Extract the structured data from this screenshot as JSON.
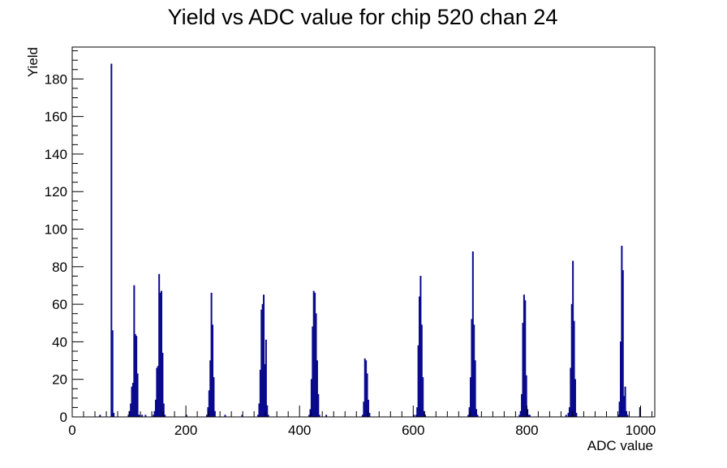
{
  "chart_data": {
    "type": "histogram",
    "title": "Yield vs ADC value for chip 520 chan 24",
    "xlabel": "ADC value",
    "ylabel": "Yield",
    "xlim": [
      0,
      1025
    ],
    "ylim": [
      0,
      197
    ],
    "x_ticks": [
      0,
      200,
      400,
      600,
      800,
      1000
    ],
    "y_ticks": [
      0,
      20,
      40,
      60,
      80,
      100,
      120,
      140,
      160,
      180
    ],
    "grid": false,
    "legend": "none",
    "line_color": "#0a0a8c",
    "bin_width": 2,
    "bins": [
      [
        48,
        1
      ],
      [
        68,
        188
      ],
      [
        70,
        46
      ],
      [
        72,
        2
      ],
      [
        98,
        1
      ],
      [
        100,
        3
      ],
      [
        102,
        7
      ],
      [
        104,
        16
      ],
      [
        106,
        18
      ],
      [
        108,
        70
      ],
      [
        110,
        44
      ],
      [
        112,
        43
      ],
      [
        114,
        23
      ],
      [
        116,
        1
      ],
      [
        118,
        1
      ],
      [
        122,
        1
      ],
      [
        128,
        1
      ],
      [
        142,
        1
      ],
      [
        144,
        3
      ],
      [
        146,
        9
      ],
      [
        148,
        26
      ],
      [
        150,
        27
      ],
      [
        152,
        76
      ],
      [
        154,
        66
      ],
      [
        156,
        67
      ],
      [
        158,
        34
      ],
      [
        160,
        7
      ],
      [
        162,
        1
      ],
      [
        200,
        1
      ],
      [
        236,
        1
      ],
      [
        238,
        5
      ],
      [
        240,
        14
      ],
      [
        242,
        30
      ],
      [
        244,
        66
      ],
      [
        246,
        49
      ],
      [
        248,
        21
      ],
      [
        250,
        3
      ],
      [
        268,
        1
      ],
      [
        298,
        1
      ],
      [
        326,
        1
      ],
      [
        328,
        7
      ],
      [
        330,
        25
      ],
      [
        332,
        57
      ],
      [
        334,
        60
      ],
      [
        336,
        65
      ],
      [
        338,
        28
      ],
      [
        340,
        41
      ],
      [
        342,
        6
      ],
      [
        344,
        1
      ],
      [
        416,
        1
      ],
      [
        418,
        4
      ],
      [
        420,
        20
      ],
      [
        422,
        48
      ],
      [
        424,
        67
      ],
      [
        426,
        66
      ],
      [
        428,
        55
      ],
      [
        430,
        30
      ],
      [
        432,
        12
      ],
      [
        434,
        1
      ],
      [
        446,
        1
      ],
      [
        510,
        1
      ],
      [
        512,
        8
      ],
      [
        514,
        31
      ],
      [
        516,
        30
      ],
      [
        518,
        23
      ],
      [
        520,
        9
      ],
      [
        522,
        2
      ],
      [
        600,
        1
      ],
      [
        604,
        1
      ],
      [
        606,
        5
      ],
      [
        608,
        38
      ],
      [
        610,
        64
      ],
      [
        612,
        75
      ],
      [
        614,
        49
      ],
      [
        616,
        21
      ],
      [
        618,
        3
      ],
      [
        620,
        1
      ],
      [
        696,
        1
      ],
      [
        698,
        5
      ],
      [
        700,
        21
      ],
      [
        702,
        52
      ],
      [
        704,
        88
      ],
      [
        706,
        49
      ],
      [
        708,
        30
      ],
      [
        710,
        4
      ],
      [
        712,
        1
      ],
      [
        786,
        1
      ],
      [
        788,
        3
      ],
      [
        790,
        12
      ],
      [
        792,
        50
      ],
      [
        794,
        65
      ],
      [
        796,
        62
      ],
      [
        798,
        22
      ],
      [
        800,
        4
      ],
      [
        802,
        1
      ],
      [
        804,
        1
      ],
      [
        868,
        1
      ],
      [
        872,
        2
      ],
      [
        874,
        5
      ],
      [
        876,
        26
      ],
      [
        878,
        60
      ],
      [
        880,
        83
      ],
      [
        882,
        51
      ],
      [
        884,
        20
      ],
      [
        886,
        2
      ],
      [
        960,
        1
      ],
      [
        962,
        8
      ],
      [
        964,
        40
      ],
      [
        966,
        91
      ],
      [
        968,
        78
      ],
      [
        970,
        11
      ],
      [
        972,
        16
      ],
      [
        974,
        3
      ],
      [
        976,
        1
      ],
      [
        998,
        5
      ]
    ]
  }
}
